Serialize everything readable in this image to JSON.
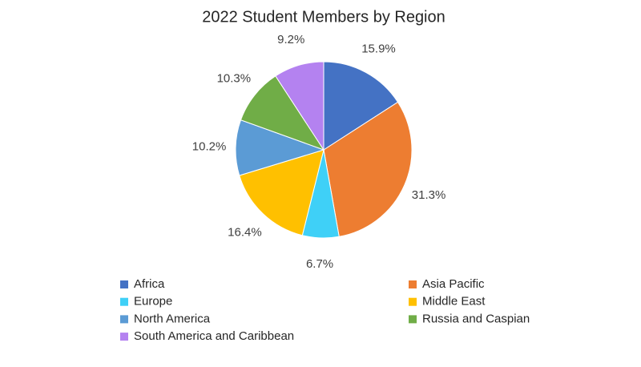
{
  "chart_data": {
    "type": "pie",
    "title": "2022 Student Members by Region",
    "categories": [
      "Africa",
      "Asia Pacific",
      "Europe",
      "Middle East",
      "North America",
      "Russia and Caspian",
      "South America and Caribbean"
    ],
    "values": [
      15.9,
      31.3,
      6.7,
      16.4,
      10.2,
      10.3,
      9.2
    ],
    "value_labels": [
      "15.9%",
      "31.3%",
      "6.7%",
      "16.4%",
      "10.2%",
      "10.3%",
      "9.2%"
    ],
    "colors": [
      "#4472c4",
      "#ed7d31",
      "#3fd0f7",
      "#ffc000",
      "#5b9bd5",
      "#70ad47",
      "#b482f0"
    ],
    "legend": "bottom"
  }
}
